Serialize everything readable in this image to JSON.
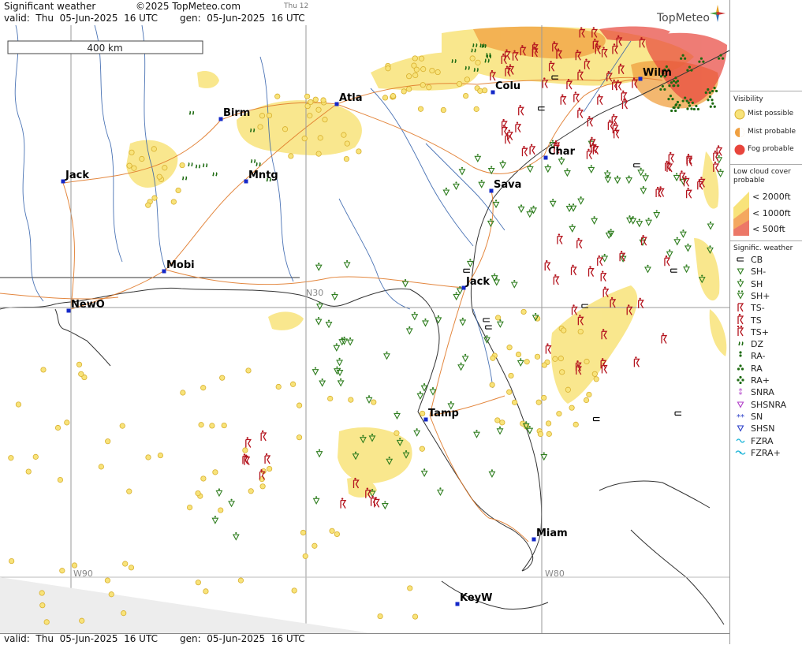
{
  "header": {
    "title": "Significant weather",
    "copyright": "©2025 TopMeteo.com",
    "tab": "Thu 12",
    "valid": "valid:  Thu  05-Jun-2025  16 UTC",
    "gen": "gen:  05-Jun-2025  16 UTC",
    "brand": "TopMeteo"
  },
  "footer": {
    "valid": "valid:  Thu  05-Jun-2025  16 UTC",
    "gen": "gen:  05-Jun-2025  16 UTC"
  },
  "map": {
    "scale_label": "400 km",
    "grid_labels": {
      "n30": "N30",
      "w90": "W90",
      "w80": "W80"
    },
    "cities": [
      {
        "name": "Birm"
      },
      {
        "name": "Atla"
      },
      {
        "name": "Colu"
      },
      {
        "name": "Wilm"
      },
      {
        "name": "Char"
      },
      {
        "name": "Sava"
      },
      {
        "name": "Jack"
      },
      {
        "name": "Mntg"
      },
      {
        "name": "Jack"
      },
      {
        "name": "Mobi"
      },
      {
        "name": "NewO"
      },
      {
        "name": "Tamp"
      },
      {
        "name": "Miam"
      },
      {
        "name": "KeyW"
      }
    ],
    "colors": {
      "mist": "#f8e37a",
      "mist_probable": "#f0a040",
      "fog": "#e8453c",
      "shower": "#2e7d1e",
      "thunder": "#b4141e",
      "roads": "#e07a2a",
      "rivers": "#2b5ba8"
    }
  },
  "legend": {
    "visibility_title": "Visibility",
    "mist_possible": "Mist possible",
    "mist_probable": "Mist probable",
    "fog_probable": "Fog probable",
    "lowcloud_title": "Low cloud cover probable",
    "lc_2000": "<  2000ft",
    "lc_1000": "<  1000ft",
    "lc_500": "<    500ft",
    "sig_title": "Signific. weather",
    "items": [
      {
        "code": "CB",
        "icon": "cb-icon",
        "color": "#000000"
      },
      {
        "code": "SH-",
        "icon": "shower-light-icon",
        "color": "#2e7d1e"
      },
      {
        "code": "SH",
        "icon": "shower-icon",
        "color": "#2e7d1e"
      },
      {
        "code": "SH+",
        "icon": "shower-heavy-icon",
        "color": "#2e7d1e"
      },
      {
        "code": "TS-",
        "icon": "thunder-light-icon",
        "color": "#b4141e"
      },
      {
        "code": "TS",
        "icon": "thunder-icon",
        "color": "#b4141e"
      },
      {
        "code": "TS+",
        "icon": "thunder-heavy-icon",
        "color": "#b4141e"
      },
      {
        "code": "DZ",
        "icon": "drizzle-icon",
        "color": "#1e6b12"
      },
      {
        "code": "RA-",
        "icon": "rain-light-icon",
        "color": "#1e6b12"
      },
      {
        "code": "RA",
        "icon": "rain-icon",
        "color": "#1e6b12"
      },
      {
        "code": "RA+",
        "icon": "rain-heavy-icon",
        "color": "#1e6b12"
      },
      {
        "code": "SNRA",
        "icon": "snow-rain-icon",
        "color": "#b03cc8"
      },
      {
        "code": "SHSNRA",
        "icon": "snow-rain-shower-icon",
        "color": "#b03cc8"
      },
      {
        "code": "SN",
        "icon": "snow-icon",
        "color": "#2a3ec8"
      },
      {
        "code": "SHSN",
        "icon": "snow-shower-icon",
        "color": "#2a3ec8"
      },
      {
        "code": "FZRA",
        "icon": "freezing-rain-icon",
        "color": "#1ab4d8"
      },
      {
        "code": "FZRA+",
        "icon": "freezing-rain-heavy-icon",
        "color": "#1ab4d8"
      }
    ]
  }
}
